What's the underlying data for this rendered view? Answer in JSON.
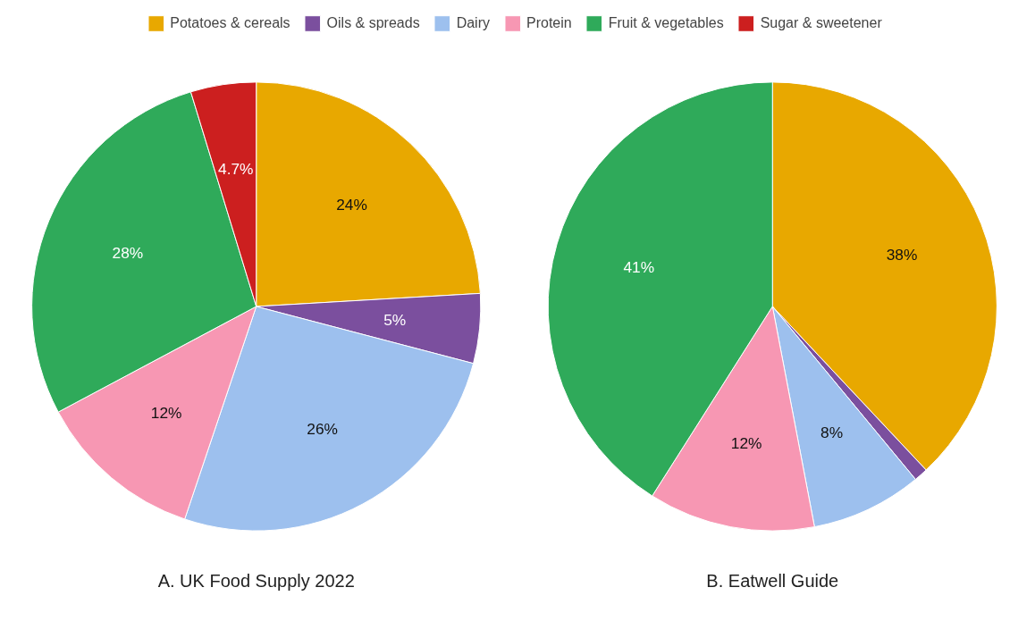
{
  "chart_data": [
    {
      "type": "pie",
      "title": "A. UK Food Supply 2022",
      "categories": [
        "Potatoes & cereals",
        "Oils & spreads",
        "Dairy",
        "Protein",
        "Fruit & vegetables",
        "Sugar & sweetener"
      ],
      "values": [
        24,
        5,
        26,
        12,
        28,
        4.7
      ],
      "value_labels": [
        "24%",
        "5%",
        "26%",
        "12%",
        "28%",
        "4.7%"
      ],
      "colors": [
        "#e8a800",
        "#7b4f9e",
        "#9dc0ee",
        "#f797b3",
        "#2faa5a",
        "#cc1f1f"
      ],
      "legend": "top"
    },
    {
      "type": "pie",
      "title": "B. Eatwell Guide",
      "categories": [
        null,
        null,
        null,
        null,
        null,
        null
      ],
      "values": [
        38,
        1,
        8,
        12,
        41,
        0
      ],
      "value_labels": [
        "38%",
        null,
        "8%",
        "12%",
        "41%",
        null
      ],
      "colors": [
        "#e8a800",
        "#7b4f9e",
        "#9dc0ee",
        "#f797b3",
        "#2faa5a",
        "#cc1f1f"
      ]
    }
  ]
}
